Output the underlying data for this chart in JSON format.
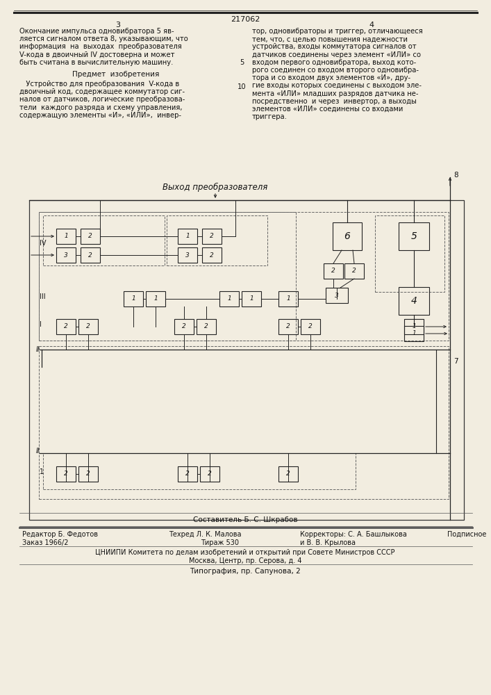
{
  "patent_number": "217062",
  "page_left": "3",
  "page_right": "4",
  "bg_color": "#f2ede0",
  "text_color": "#111111",
  "diagram_label": "Выход преобразователя",
  "footer_sostavitel": "Составитель Б. С. Шкрабов",
  "footer_editor": "Редактор Б. Федотов",
  "footer_tech": "Техред Л. К. Малова",
  "footer_correctors": "Корректоры: С. А. Башлыкова",
  "footer_correctors2": "и В. В. Крылова",
  "footer_podpisnoe": "Подписное",
  "footer_zakaz": "Заказ 1966/2",
  "footer_tirazh": "Тираж 530",
  "footer_org": "ЦНИИПИ Комитета по делам изобретений и открытий при Совете Министров СССР",
  "footer_addr": "Москва, Центр, пр. Серова, д. 4",
  "footer_tipografia": "Типография, пр. Сапунова, 2"
}
